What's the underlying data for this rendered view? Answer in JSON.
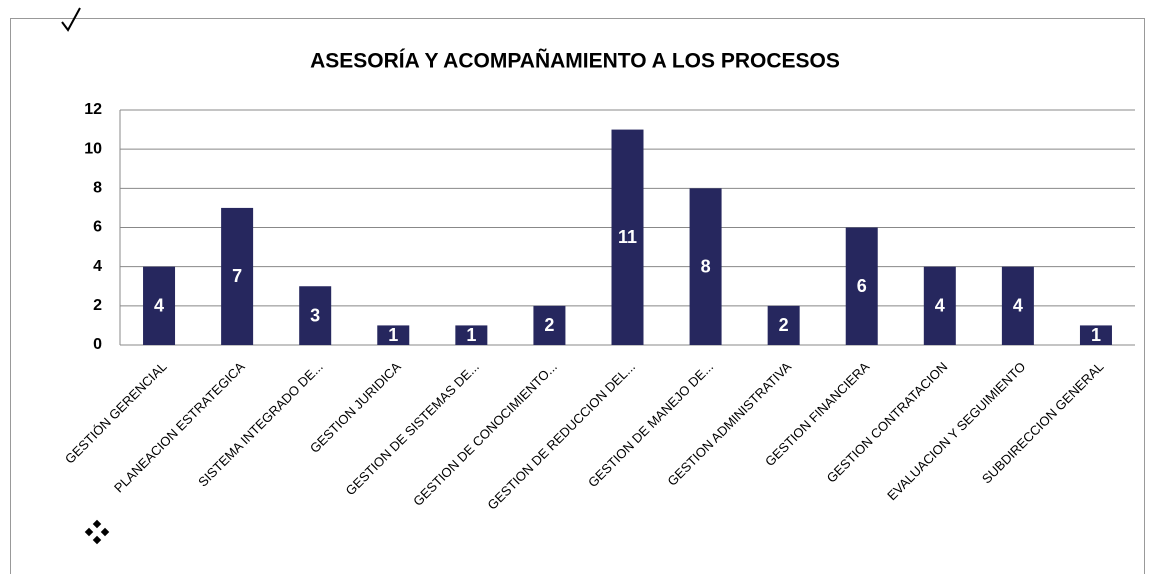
{
  "chart_data": {
    "type": "bar",
    "title": "ASESORÍA Y ACOMPAÑAMIENTO A LOS PROCESOS",
    "categories": [
      "GESTIÓN GERENCIAL",
      "PLANEACION ESTRATEGICA",
      "SISTEMA INTEGRADO DE...",
      "GESTION JURIDICA",
      "GESTION DE SISTEMAS DE...",
      "GESTION DE CONOCIMIENTO...",
      "GESTION DE REDUCCION DEL...",
      "GESTION DE MANEJO DE...",
      "GESTION ADMINISTRATIVA",
      "GESTION FINANCIERA",
      "GESTION CONTRATACION",
      "EVALUACION Y SEGUIMIENTO",
      "SUBDIRECCION GENERAL"
    ],
    "values": [
      4,
      7,
      3,
      1,
      1,
      2,
      11,
      8,
      2,
      6,
      4,
      4,
      1
    ],
    "color": "#26275e",
    "ylim": [
      0,
      12
    ],
    "yticks": [
      0,
      2,
      4,
      6,
      8,
      10,
      12
    ],
    "grid": true
  }
}
